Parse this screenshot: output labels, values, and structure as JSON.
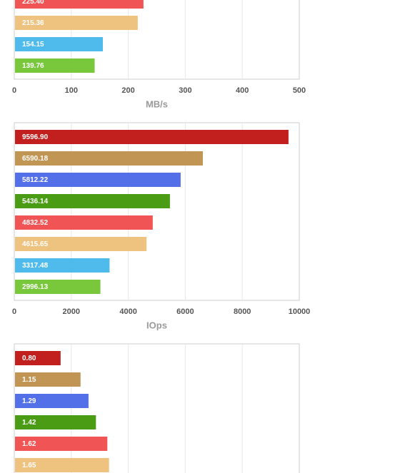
{
  "chart_data": [
    {
      "type": "bar",
      "orientation": "horizontal",
      "x_label": "MB/s",
      "values": [
        225.4,
        215.36,
        154.15,
        139.76
      ],
      "value_labels": [
        "225.40",
        "215.36",
        "154.15",
        "139.76"
      ],
      "colors": [
        "#f05454",
        "#eec27f",
        "#4ebbec",
        "#79c83b"
      ],
      "xlim": [
        0,
        500
      ],
      "xticks": [
        0,
        100,
        200,
        300,
        400,
        500
      ],
      "tick_labels": true,
      "grid": true
    },
    {
      "type": "bar",
      "orientation": "horizontal",
      "x_label": "IOps",
      "values": [
        9596.9,
        6590.18,
        5812.22,
        5436.14,
        4832.52,
        4615.65,
        3317.48,
        2996.13
      ],
      "value_labels": [
        "9596.90",
        "6590.18",
        "5812.22",
        "5436.14",
        "4832.52",
        "4615.65",
        "3317.48",
        "2996.13"
      ],
      "colors": [
        "#c1201f",
        "#c19553",
        "#5470e8",
        "#4a9c14",
        "#f05454",
        "#eec27f",
        "#4ebbec",
        "#79c83b"
      ],
      "xlim": [
        0,
        10000
      ],
      "xticks": [
        0,
        2000,
        4000,
        6000,
        8000,
        10000
      ],
      "tick_labels": true,
      "grid": true
    },
    {
      "type": "bar",
      "orientation": "horizontal",
      "values": [
        0.8,
        1.15,
        1.29,
        1.42,
        1.62,
        1.65
      ],
      "value_labels": [
        "0.80",
        "1.15",
        "1.29",
        "1.42",
        "1.62",
        "1.65"
      ],
      "colors": [
        "#c1201f",
        "#c19553",
        "#5470e8",
        "#4a9c14",
        "#f05454",
        "#eec27f"
      ],
      "xlim": [
        0,
        5
      ],
      "xticks": [
        1,
        2,
        3,
        4
      ],
      "tick_labels": false,
      "grid": true
    }
  ]
}
